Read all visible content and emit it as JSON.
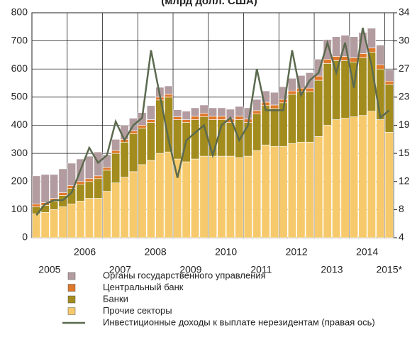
{
  "chart_data": {
    "type": "bar",
    "title": "(млрд долл. США)",
    "categories": [
      null,
      null,
      null,
      null,
      null,
      null,
      null,
      null,
      null,
      null,
      null,
      null,
      null,
      null,
      null,
      null,
      null,
      null,
      null,
      null,
      null,
      null,
      null,
      null,
      null,
      null,
      null,
      null,
      null,
      null,
      null,
      null,
      null,
      null,
      null,
      null,
      null,
      null,
      null,
      null,
      null
    ],
    "x_labels": [
      "2005",
      "2006",
      "2007",
      "2008",
      "2009",
      "2010",
      "2011",
      "2012",
      "2013",
      "2014",
      "2015*"
    ],
    "stacked": true,
    "grid": true,
    "ylim": [
      0,
      800
    ],
    "yticks": [
      0,
      100,
      200,
      300,
      400,
      500,
      600,
      700,
      800
    ],
    "y2lim": [
      4,
      34
    ],
    "y2ticks": [
      4,
      {
        "value": 7.75,
        "label": "8"
      },
      {
        "value": 11.5,
        "label": "12"
      },
      {
        "value": 15.25,
        "label": "15"
      },
      19,
      {
        "value": 22.75,
        "label": "23"
      },
      {
        "value": 26.5,
        "label": "27"
      },
      {
        "value": 30.25,
        "label": "30"
      },
      34
    ],
    "series": [
      {
        "name": "Органы государственного управления",
        "color": "#b39ca0",
        "values": [
          100,
          100,
          85,
          85,
          80,
          80,
          80,
          85,
          45,
          40,
          50,
          45,
          45,
          50,
          35,
          30,
          25,
          30,
          30,
          30,
          30,
          30,
          35,
          35,
          40,
          40,
          40,
          45,
          45,
          45,
          45,
          55,
          60,
          70,
          70,
          75,
          75,
          75,
          70,
          70,
          40
        ]
      },
      {
        "name": "Центральный банк",
        "color": "#e0782a",
        "values": [
          10,
          10,
          10,
          10,
          10,
          10,
          10,
          10,
          10,
          10,
          10,
          10,
          10,
          10,
          10,
          10,
          10,
          10,
          12,
          12,
          12,
          12,
          12,
          12,
          12,
          12,
          12,
          12,
          12,
          12,
          12,
          12,
          15,
          15,
          15,
          15,
          15,
          15,
          15,
          15,
          12
        ]
      },
      {
        "name": "Банки",
        "color": "#a38c1e",
        "values": [
          25,
          25,
          30,
          40,
          55,
          60,
          60,
          70,
          75,
          105,
          125,
          135,
          130,
          135,
          190,
          195,
          140,
          140,
          140,
          140,
          130,
          130,
          120,
          135,
          120,
          130,
          140,
          135,
          155,
          175,
          180,
          180,
          200,
          220,
          210,
          205,
          195,
          205,
          210,
          180,
          170
        ]
      },
      {
        "name": "Прочие секторы",
        "color": "#f6ca6c",
        "values": [
          85,
          90,
          100,
          110,
          120,
          130,
          140,
          140,
          165,
          195,
          215,
          235,
          260,
          275,
          300,
          305,
          280,
          270,
          280,
          290,
          290,
          290,
          290,
          285,
          290,
          310,
          330,
          325,
          325,
          335,
          340,
          340,
          360,
          400,
          420,
          425,
          430,
          435,
          450,
          420,
          375
        ]
      },
      {
        "name": "Инвестиционные доходы к выплате нерезидентам (правая ось)",
        "color": "#5b6a4e",
        "type": "line",
        "axis": "y2",
        "values": [
          7,
          8.5,
          9,
          9,
          10,
          13,
          16,
          14,
          15,
          19.5,
          17,
          19,
          20,
          29,
          23,
          17,
          12,
          17,
          18,
          19,
          15,
          19,
          20,
          17,
          19,
          26.5,
          21,
          21,
          21,
          29,
          23,
          25,
          26,
          30,
          26,
          30,
          24,
          32,
          27,
          20,
          21
        ]
      }
    ]
  }
}
